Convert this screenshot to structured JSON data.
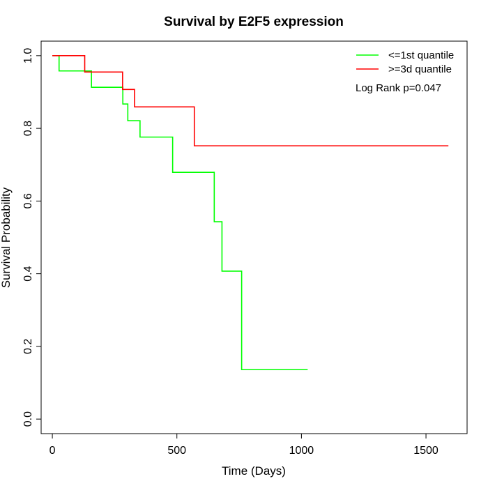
{
  "chart_data": {
    "type": "line",
    "title": "Survival by E2F5 expression",
    "xlabel": "Time (Days)",
    "ylabel": "Survival Probability",
    "xlim": [
      -45,
      1665
    ],
    "ylim": [
      -0.04,
      1.04
    ],
    "x_ticks": [
      {
        "value": 0,
        "label": "0"
      },
      {
        "value": 500,
        "label": "500"
      },
      {
        "value": 1000,
        "label": "1000"
      },
      {
        "value": 1500,
        "label": "1500"
      }
    ],
    "y_ticks": [
      {
        "value": 0.0,
        "label": "0.0"
      },
      {
        "value": 0.2,
        "label": "0.2"
      },
      {
        "value": 0.4,
        "label": "0.4"
      },
      {
        "value": 0.6,
        "label": "0.6"
      },
      {
        "value": 0.8,
        "label": "0.8"
      },
      {
        "value": 1.0,
        "label": "1.0"
      }
    ],
    "grid": false,
    "legend_position": "top-right",
    "annotation": "Log Rank p=0.047",
    "series": [
      {
        "name": "<=1st quantile",
        "color": "#00ff00",
        "step": true,
        "x": [
          0,
          27,
          157,
          283,
          303,
          352,
          483,
          650,
          681,
          760,
          1025
        ],
        "y": [
          1.0,
          0.958,
          0.913,
          0.867,
          0.821,
          0.776,
          0.679,
          0.543,
          0.407,
          0.136,
          0.136
        ]
      },
      {
        "name": ">=3d quantile",
        "color": "#ff0000",
        "step": true,
        "x": [
          0,
          130,
          282,
          330,
          570,
          1590
        ],
        "y": [
          1.0,
          0.955,
          0.907,
          0.859,
          0.752,
          0.752
        ]
      }
    ]
  }
}
